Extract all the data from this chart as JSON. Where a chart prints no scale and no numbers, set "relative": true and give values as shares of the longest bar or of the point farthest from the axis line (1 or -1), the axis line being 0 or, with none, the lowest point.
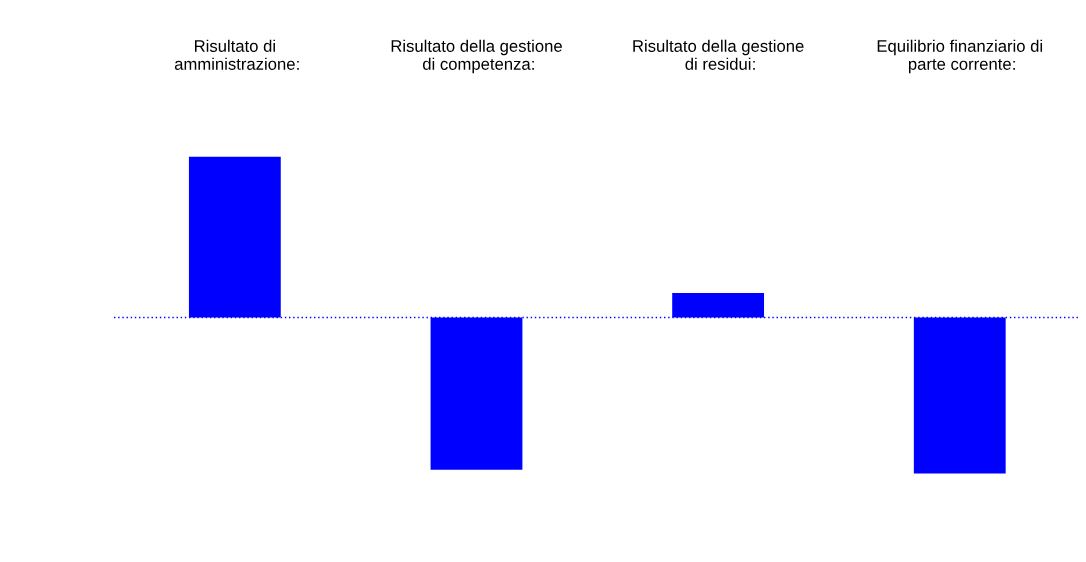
{
  "chart_data": {
    "type": "bar",
    "relative": true,
    "categories": [
      "Risultato di\namministrazione",
      "Risultato della gestione\ndi competenza",
      "Risultato della gestione\ndi residui",
      "Equilibrio finanziario di\nparte corrente"
    ],
    "annotations": [
      ":"
    ],
    "ref_lines": [
      {
        "axis": "y",
        "value": 0,
        "color": "#0000ff",
        "line_style": "dotted"
      }
    ],
    "values": [
      1,
      -0.946,
      0.153,
      -0.969
    ],
    "color": "#0000ff",
    "grid": false
  }
}
